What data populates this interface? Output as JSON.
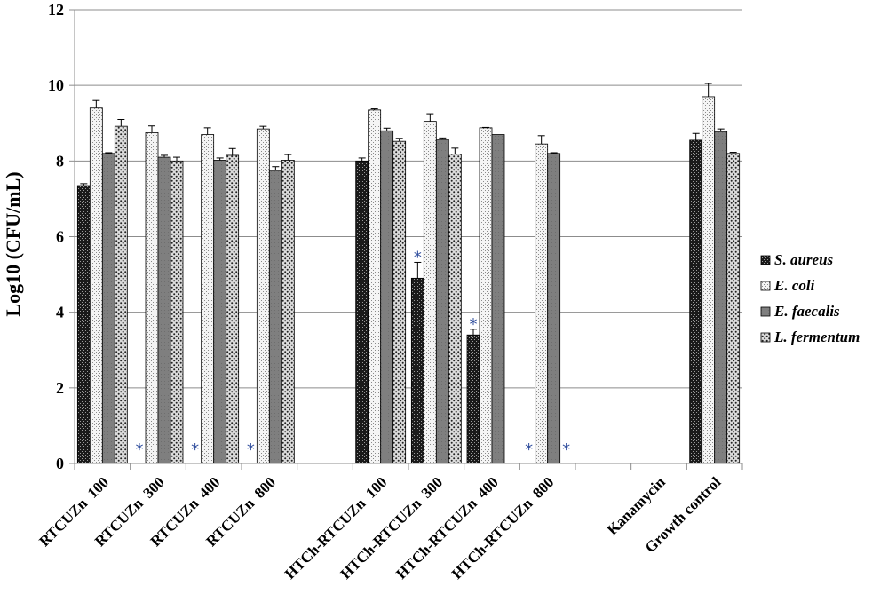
{
  "chart_data": {
    "type": "bar",
    "title": "",
    "xlabel": "",
    "ylabel": "Log10 (CFU/mL)",
    "ylim": [
      0,
      12
    ],
    "yticks": [
      "0",
      "2",
      "4",
      "6",
      "8",
      "10",
      "12"
    ],
    "grid": true,
    "legend_position": "right",
    "categories": [
      "RTCUZn  100",
      "RTCUZn  300",
      "RTCUZn  400",
      "RTCUZn  800",
      "",
      "HTCh-RTCUZn  100",
      "HTCh-RTCUZn  300",
      "HTCh-RTCUZn  400",
      "HTCh-RTCUZn  800",
      "",
      "Kanamycin",
      "Growth control"
    ],
    "series": [
      {
        "name": "S. aureus",
        "pattern": "dark",
        "values": [
          7.35,
          0,
          0,
          0,
          null,
          8.0,
          4.9,
          3.4,
          0,
          null,
          0,
          8.55
        ],
        "errors": [
          0.05,
          0,
          0,
          0,
          null,
          0.08,
          0.42,
          0.15,
          0,
          null,
          0,
          0.18
        ],
        "stars": [
          false,
          true,
          true,
          true,
          false,
          false,
          true,
          true,
          true,
          false,
          false,
          false
        ]
      },
      {
        "name": "E. coli",
        "pattern": "light",
        "values": [
          9.4,
          8.75,
          8.7,
          8.85,
          null,
          9.35,
          9.05,
          8.88,
          8.45,
          null,
          0,
          9.7
        ],
        "errors": [
          0.2,
          0.18,
          0.18,
          0.07,
          null,
          0.03,
          0.2,
          0.01,
          0.22,
          null,
          0,
          0.35
        ],
        "stars": [
          false,
          false,
          false,
          false,
          false,
          false,
          false,
          false,
          false,
          false,
          false,
          false
        ]
      },
      {
        "name": "E. faecalis",
        "pattern": "gray",
        "values": [
          8.2,
          8.1,
          8.02,
          7.75,
          null,
          8.8,
          8.57,
          8.7,
          8.2,
          null,
          0,
          8.78
        ],
        "errors": [
          0.02,
          0.05,
          0.06,
          0.1,
          null,
          0.07,
          0.04,
          0.0,
          0.02,
          null,
          0,
          0.07
        ],
        "stars": [
          false,
          false,
          false,
          false,
          false,
          false,
          false,
          false,
          false,
          false,
          false,
          false
        ]
      },
      {
        "name": "L. fermentum",
        "pattern": "medium",
        "values": [
          8.92,
          8.0,
          8.15,
          8.02,
          null,
          8.52,
          8.18,
          0,
          0,
          null,
          0,
          8.2
        ],
        "errors": [
          0.18,
          0.1,
          0.18,
          0.15,
          null,
          0.08,
          0.16,
          0,
          0,
          null,
          0,
          0.03
        ],
        "stars": [
          false,
          false,
          false,
          false,
          false,
          false,
          false,
          false,
          true,
          false,
          false,
          false
        ]
      }
    ],
    "significance_marker": "*"
  }
}
